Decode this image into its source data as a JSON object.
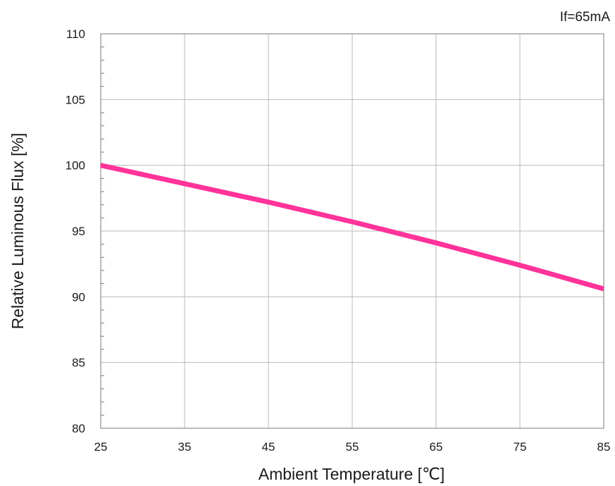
{
  "chart_data": {
    "type": "line",
    "annotation": "If=65mA",
    "xlabel": "Ambient Temperature [℃]",
    "ylabel": "Relative Luminous Flux [%]",
    "xlim": [
      25,
      85
    ],
    "ylim": [
      80,
      110
    ],
    "xticks": [
      25,
      35,
      45,
      55,
      65,
      75,
      85
    ],
    "yticks": [
      80,
      85,
      90,
      95,
      100,
      105,
      110
    ],
    "grid": true,
    "series": [
      {
        "color": "#ff3399",
        "x": [
          25,
          35,
          45,
          55,
          65,
          75,
          85
        ],
        "y": [
          100.0,
          98.6,
          97.2,
          95.7,
          94.1,
          92.4,
          90.6
        ]
      }
    ]
  }
}
